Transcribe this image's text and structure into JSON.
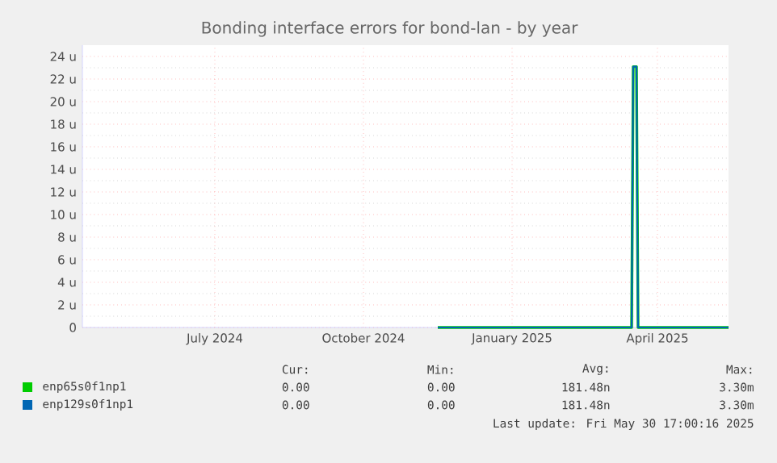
{
  "chart_data": {
    "type": "line",
    "title": "Bonding interface errors for bond-lan - by year",
    "xlim": [
      "2024-04-25",
      "2025-05-30"
    ],
    "xticks": [
      {
        "value": "2024-07-16",
        "label": "July 2024"
      },
      {
        "value": "2024-10-16",
        "label": "October 2024"
      },
      {
        "value": "2025-01-16",
        "label": "January 2025"
      },
      {
        "value": "2025-04-16",
        "label": "April 2025"
      }
    ],
    "ylim": [
      0,
      25
    ],
    "yticks": [
      {
        "value": 0,
        "label": "0"
      },
      {
        "value": 2,
        "label": "2 u"
      },
      {
        "value": 4,
        "label": "4 u"
      },
      {
        "value": 6,
        "label": "6 u"
      },
      {
        "value": 8,
        "label": "8 u"
      },
      {
        "value": 10,
        "label": "10 u"
      },
      {
        "value": 12,
        "label": "12 u"
      },
      {
        "value": 14,
        "label": "14 u"
      },
      {
        "value": 16,
        "label": "16 u"
      },
      {
        "value": 18,
        "label": "18 u"
      },
      {
        "value": 20,
        "label": "20 u"
      },
      {
        "value": 22,
        "label": "22 u"
      },
      {
        "value": 24,
        "label": "24 u"
      }
    ],
    "grid": true,
    "legend": "bottom",
    "series": [
      {
        "name": "enp65s0f1np1",
        "color": "#00cc00",
        "x": [
          "2024-12-01",
          "2025-03-31",
          "2025-04-01",
          "2025-04-03",
          "2025-04-04",
          "2025-05-30"
        ],
        "values": [
          0,
          0,
          23.1,
          23.1,
          0,
          0
        ]
      },
      {
        "name": "enp129s0f1np1",
        "color": "#0066b3",
        "x": [
          "2024-12-01",
          "2025-03-31",
          "2025-04-01",
          "2025-04-03",
          "2025-04-04",
          "2025-05-30"
        ],
        "values": [
          0,
          0,
          23.1,
          23.1,
          0,
          0
        ]
      }
    ],
    "annotations": [
      "Cur:",
      "Min:",
      "Avg:",
      "Max:",
      "0.00",
      "0.00",
      "181.48n",
      "3.30m",
      "0.00",
      "0.00",
      "181.48n",
      "3.30m",
      "Last update: Fri May 30 17:00:16 2025"
    ]
  }
}
